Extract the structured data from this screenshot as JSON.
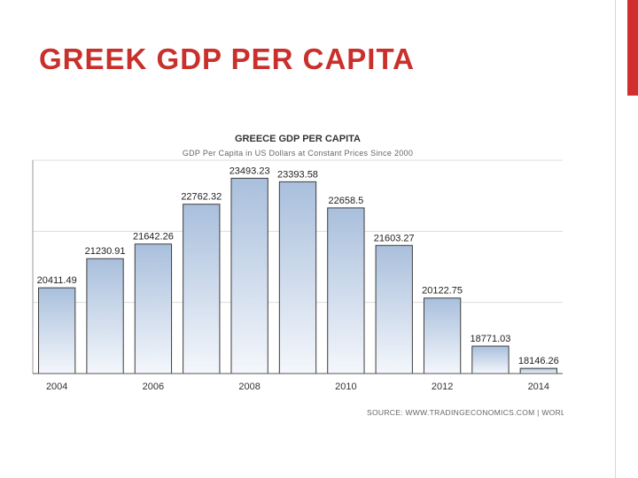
{
  "slide": {
    "title": "GREEK GDP PER CAPITA",
    "accent_color": "#d12f2f"
  },
  "chart_data": {
    "type": "bar",
    "title": "GREECE GDP PER CAPITA",
    "subtitle": "GDP Per Capita in US Dollars at Constant Prices Since 2000",
    "categories": [
      "2004",
      "2005",
      "2006",
      "2007",
      "2008",
      "2009",
      "2010",
      "2011",
      "2012",
      "2013",
      "2014"
    ],
    "values": [
      20411.49,
      21230.91,
      21642.26,
      22762.32,
      23493.23,
      23393.58,
      22658.5,
      21603.27,
      20122.75,
      18771.03,
      18146.26
    ],
    "value_labels": [
      "20411.49",
      "21230.91",
      "21642.26",
      "22762.32",
      "23493.23",
      "23393.58",
      "22658.5",
      "21603.27",
      "20122.75",
      "18771.03",
      "18146.26"
    ],
    "x_tick_labels": [
      "2004",
      "2006",
      "2008",
      "2010",
      "2012",
      "2014"
    ],
    "ylim": [
      18000,
      24000
    ],
    "grid": true,
    "bar_color_top": "#a9bfdc",
    "bar_color_bottom": "#f4f7fc",
    "source": "SOURCE: WWW.TRADINGECONOMICS.COM | WORLD BANK"
  }
}
